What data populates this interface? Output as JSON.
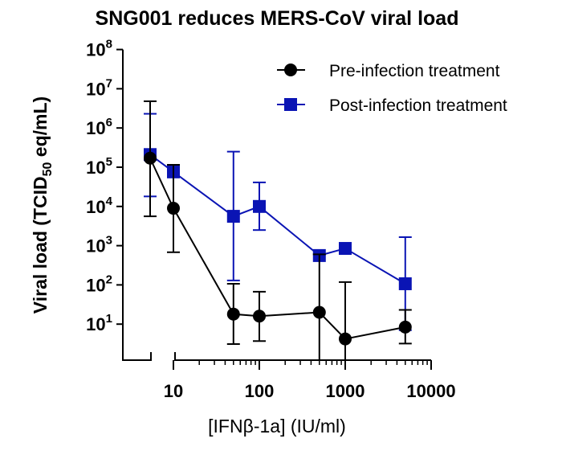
{
  "chart_data": {
    "type": "scatter",
    "title": "SNG001 reduces MERS-CoV viral load",
    "xlabel": "[IFNβ-1a] (IU/ml)",
    "ylabel": "Viral load (TCID",
    "ylabel_sub": "50",
    "ylabel_tail": " eq/mL)",
    "x_scale": "log",
    "y_scale": "log",
    "xlim": [
      10,
      10000
    ],
    "ylim": [
      1,
      100000000
    ],
    "x_axis_break": true,
    "grid": false,
    "legend_position": "top-right",
    "x_ticks": [
      "10",
      "100",
      "1000",
      "10000"
    ],
    "y_ticks": [
      {
        "base": "10",
        "exp": "1"
      },
      {
        "base": "10",
        "exp": "2"
      },
      {
        "base": "10",
        "exp": "3"
      },
      {
        "base": "10",
        "exp": "4"
      },
      {
        "base": "10",
        "exp": "5"
      },
      {
        "base": "10",
        "exp": "6"
      },
      {
        "base": "10",
        "exp": "7"
      },
      {
        "base": "10",
        "exp": "8"
      }
    ],
    "series": [
      {
        "name": "Pre-infection treatment",
        "color": "#000000",
        "marker": "circle",
        "points": [
          {
            "x": 5,
            "y": 170000,
            "hi": 4800000,
            "lo": 5600
          },
          {
            "x": 10,
            "y": 9000,
            "hi": 115000,
            "lo": 680
          },
          {
            "x": 50,
            "y": 18,
            "hi": 107,
            "lo": 3.1
          },
          {
            "x": 100,
            "y": 16,
            "hi": 67,
            "lo": 3.7
          },
          {
            "x": 500,
            "y": 20,
            "hi": 600,
            "lo": 1
          },
          {
            "x": 1000,
            "y": 4.2,
            "hi": 118,
            "lo": 1
          },
          {
            "x": 5000,
            "y": 8.4,
            "hi": 23,
            "lo": 3.2
          }
        ]
      },
      {
        "name": "Post-infection treatment",
        "color": "#0a14b4",
        "marker": "square",
        "points": [
          {
            "x": 5,
            "y": 210000,
            "hi": 2300000,
            "lo": 18000
          },
          {
            "x": 10,
            "y": 76000,
            "hi": 115000,
            "lo": 76000
          },
          {
            "x": 50,
            "y": 5600,
            "hi": 250000,
            "lo": 130
          },
          {
            "x": 100,
            "y": 10000,
            "hi": 41000,
            "lo": 2500
          },
          {
            "x": 500,
            "y": 560,
            "hi": 560,
            "lo": 560
          },
          {
            "x": 1000,
            "y": 850,
            "hi": 850,
            "lo": 850
          },
          {
            "x": 5000,
            "y": 107,
            "hi": 1650,
            "lo": 7
          }
        ]
      }
    ]
  }
}
